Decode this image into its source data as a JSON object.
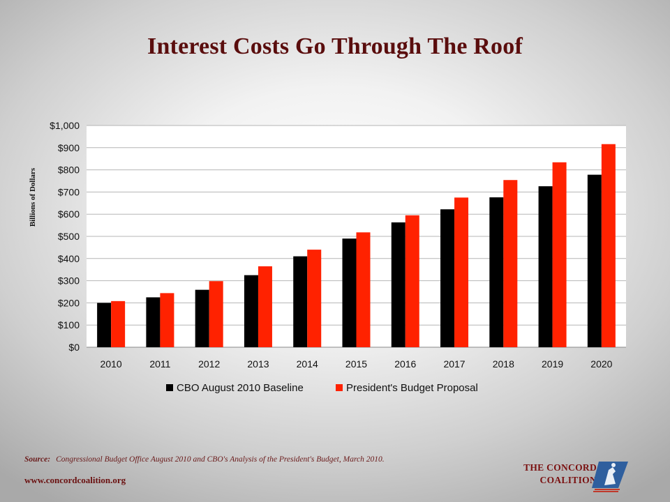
{
  "slide": {
    "title": "Interest Costs Go Through The Roof",
    "source_label": "Source:",
    "source_text": "Congressional Budget Office August 2010 and CBO's Analysis of the President's Budget, March 2010.",
    "website": "www.concordcoalition.org",
    "logo_line1": "THE CONCORD",
    "logo_line2": "COALITION"
  },
  "colors": {
    "series1": "#000000",
    "series2": "#ff2200",
    "title": "#5a0d0d"
  },
  "chart_data": {
    "type": "bar",
    "title": "",
    "xlabel": "",
    "ylabel": "Billions of Dollars",
    "categories": [
      "2010",
      "2011",
      "2012",
      "2013",
      "2014",
      "2015",
      "2016",
      "2017",
      "2018",
      "2019",
      "2020"
    ],
    "series": [
      {
        "name": "CBO August 2010 Baseline",
        "color": "#000000",
        "values": [
          200,
          225,
          259,
          325,
          410,
          490,
          563,
          622,
          676,
          726,
          778
        ]
      },
      {
        "name": "President's Budget Proposal",
        "color": "#ff2200",
        "values": [
          208,
          244,
          298,
          365,
          440,
          518,
          595,
          675,
          754,
          834,
          916
        ]
      }
    ],
    "ylim": [
      0,
      1000
    ],
    "yticks": [
      0,
      100,
      200,
      300,
      400,
      500,
      600,
      700,
      800,
      900,
      1000
    ],
    "ytick_labels": [
      "$0",
      "$100",
      "$200",
      "$300",
      "$400",
      "$500",
      "$600",
      "$700",
      "$800",
      "$900",
      "$1,000"
    ],
    "grid": true,
    "legend_position": "bottom"
  }
}
